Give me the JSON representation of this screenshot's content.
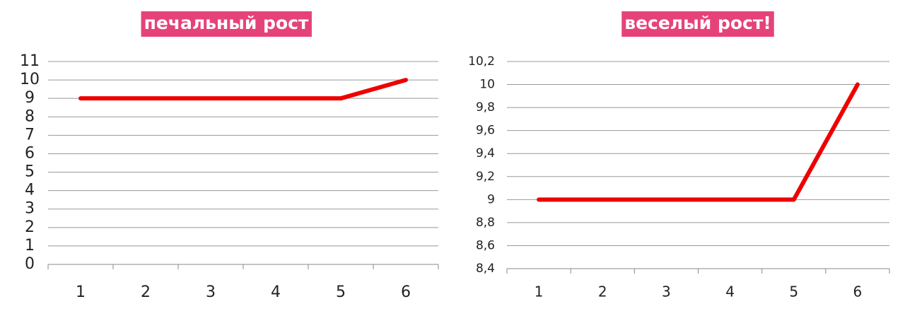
{
  "chart_data": [
    {
      "type": "line",
      "title": "печальный рост",
      "categories": [
        "1",
        "2",
        "3",
        "4",
        "5",
        "6"
      ],
      "series": [
        {
          "color": "#ee0000",
          "values": [
            9,
            9,
            9,
            9,
            9,
            10
          ]
        }
      ],
      "ylim": [
        0,
        11
      ],
      "yticks": [
        0,
        1,
        2,
        3,
        4,
        5,
        6,
        7,
        8,
        9,
        10,
        11
      ],
      "grid": true,
      "title_color": "#e6427a"
    },
    {
      "type": "line",
      "title": "веселый рост!",
      "categories": [
        "1",
        "2",
        "3",
        "4",
        "5",
        "6"
      ],
      "series": [
        {
          "color": "#ee0000",
          "values": [
            9,
            9,
            9,
            9,
            9,
            10
          ]
        }
      ],
      "ylim": [
        8.4,
        10.2
      ],
      "yticks": [
        {
          "value": 8.4,
          "label": "8,4"
        },
        {
          "value": 8.6,
          "label": "8,6"
        },
        {
          "value": 8.8,
          "label": "8,8"
        },
        9,
        {
          "value": 9.2,
          "label": "9,2"
        },
        {
          "value": 9.4,
          "label": "9,4"
        },
        {
          "value": 9.6,
          "label": "9,6"
        },
        {
          "value": 9.8,
          "label": "9,8"
        },
        10,
        {
          "value": 10.2,
          "label": "10,2"
        }
      ],
      "grid": true,
      "title_color": "#e6427a"
    }
  ]
}
